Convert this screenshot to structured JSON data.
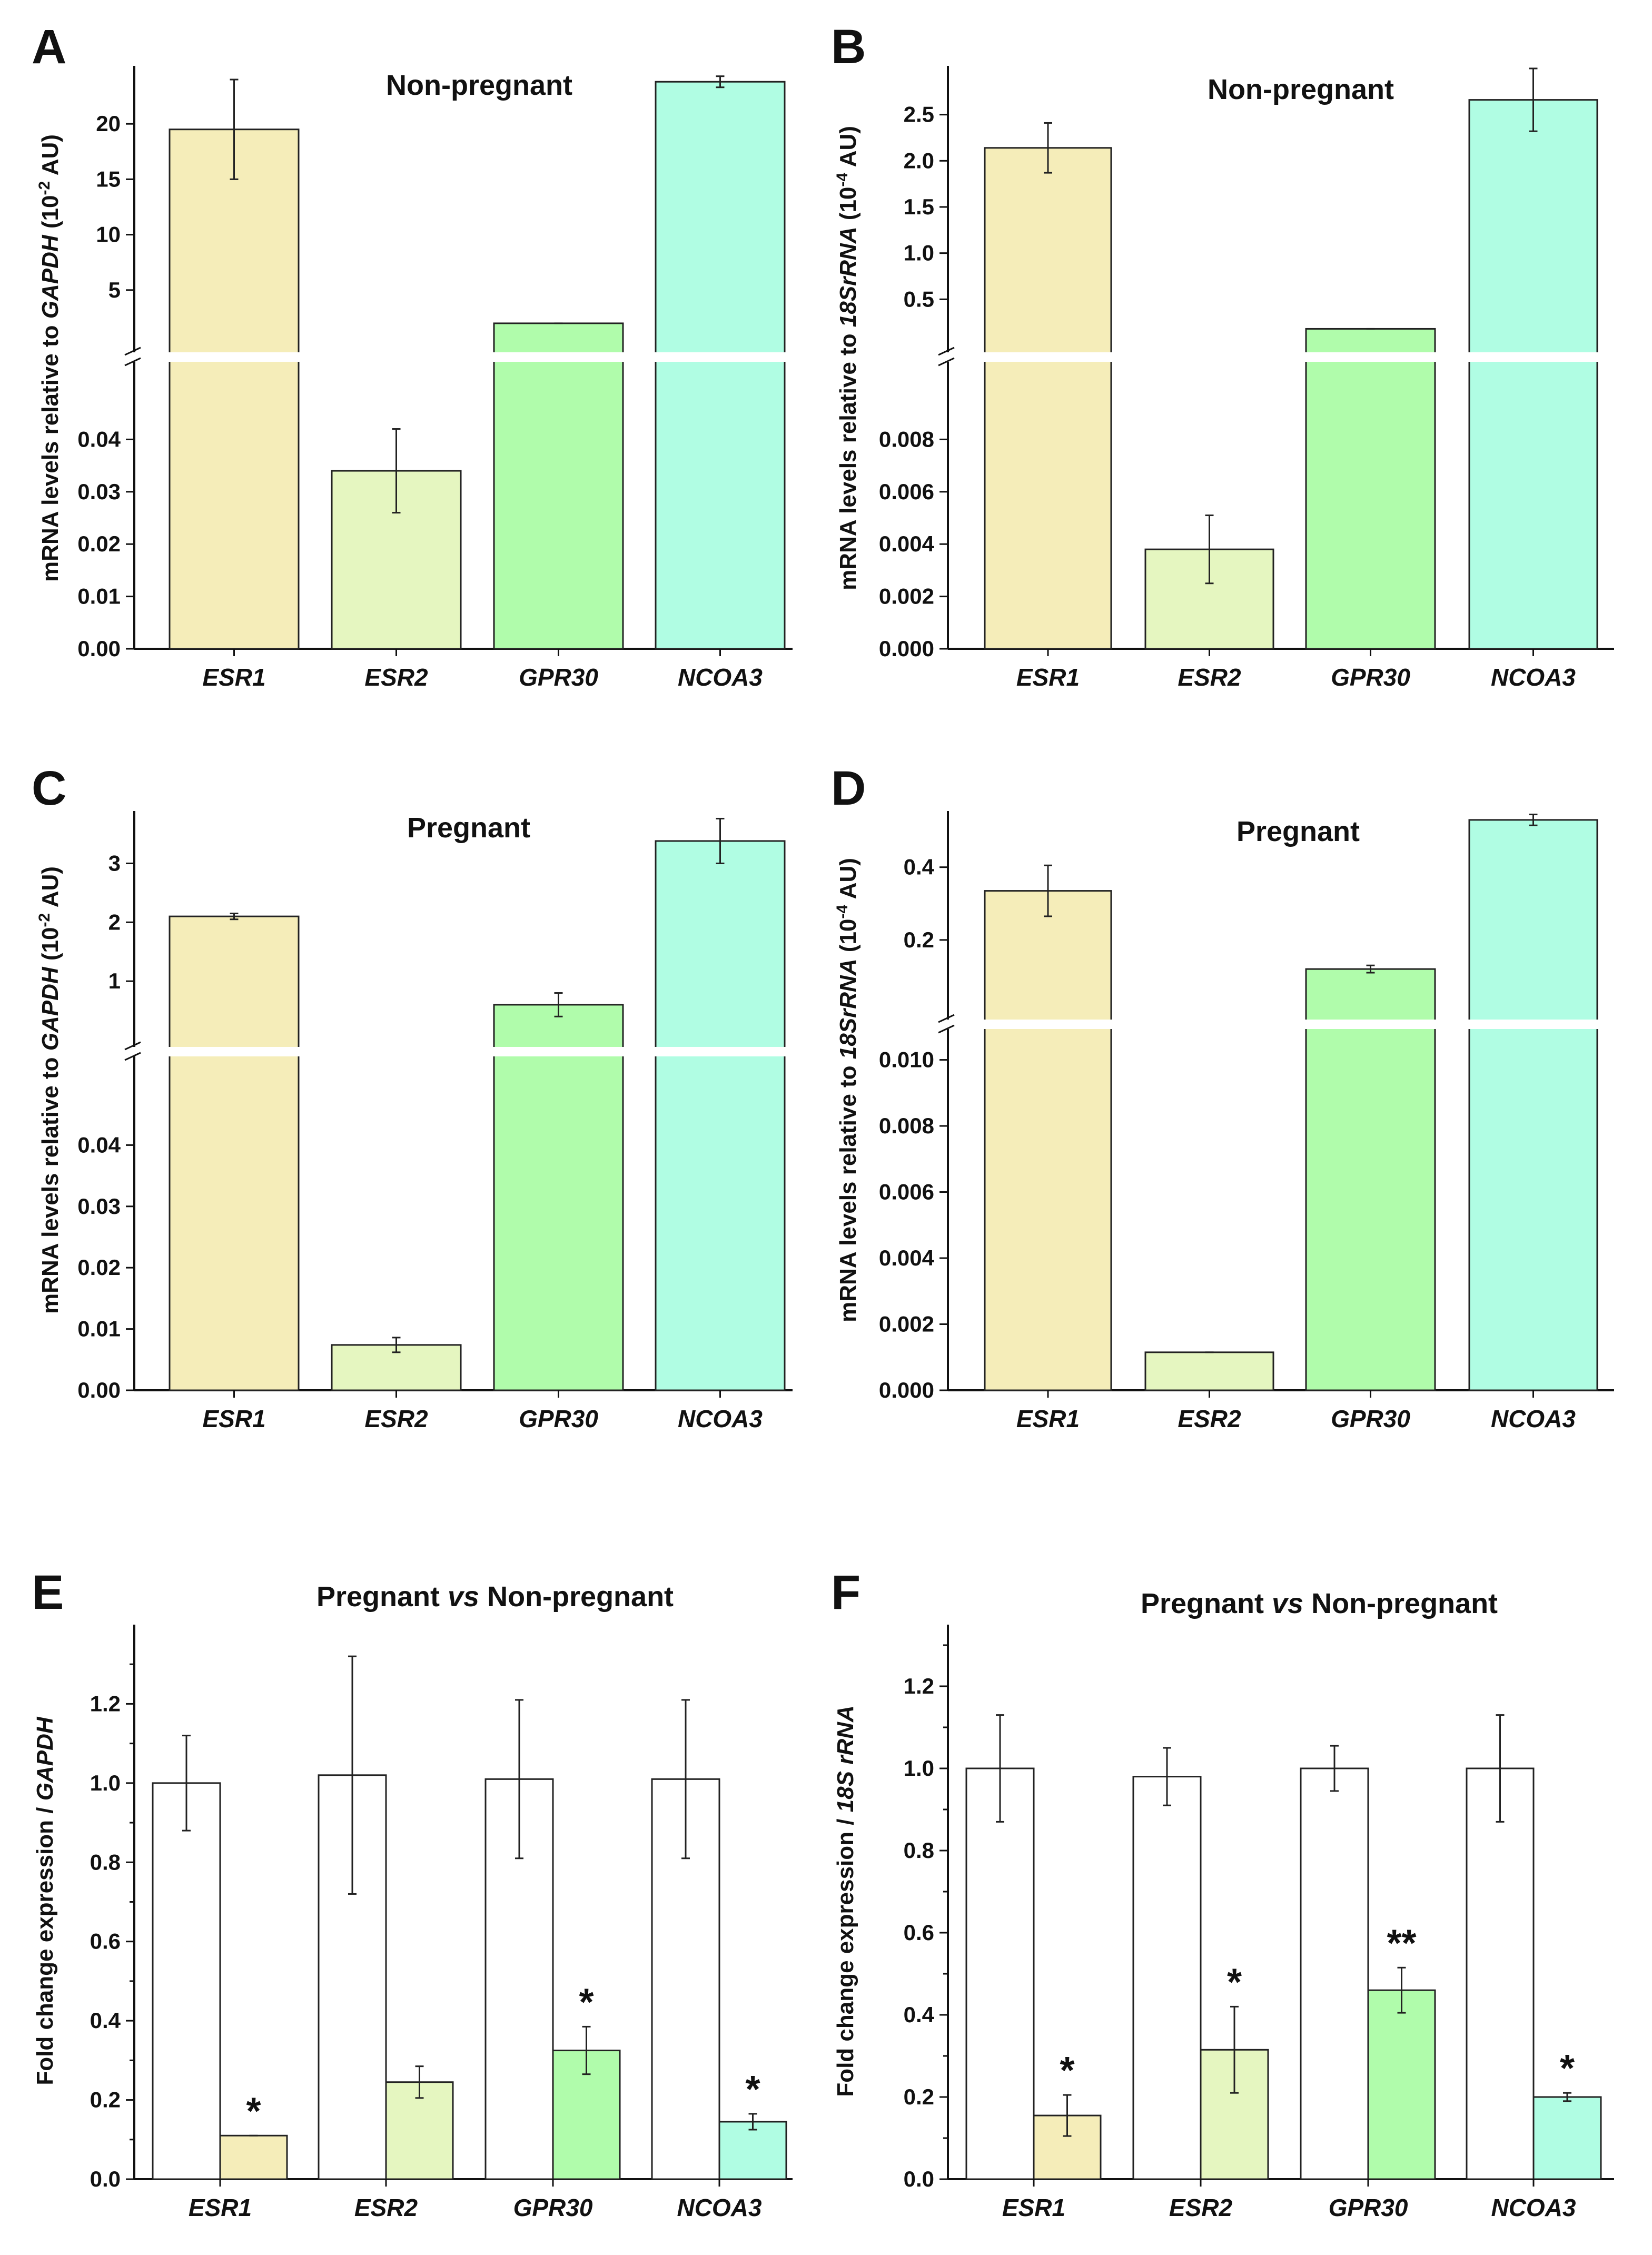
{
  "colors": {
    "ESR1": "#f5edb9",
    "ESR2": "#e5f6c0",
    "GPR30": "#b0fcab",
    "NCOA3": "#b0fde3",
    "control": "#ffffff"
  },
  "categories": [
    "ESR1",
    "ESR2",
    "GPR30",
    "NCOA3"
  ],
  "chart_data": [
    {
      "panel": "A",
      "type": "bar",
      "title": "Non-pregnant",
      "ylabel": "mRNA levels relative to GAPDH (10⁻² AU)",
      "ylabel_parts": [
        "mRNA levels relative to ",
        "GAPDH",
        " (10",
        "-2",
        " AU)"
      ],
      "categories": [
        "ESR1",
        "ESR2",
        "GPR30",
        "NCOA3"
      ],
      "axis_break": true,
      "lower_ylim": [
        0,
        0.05
      ],
      "lower_ticks": [
        "0.00",
        "0.01",
        "0.02",
        "0.03",
        "0.04"
      ],
      "upper_ylim": [
        0,
        25
      ],
      "upper_ticks": [
        "5",
        "10",
        "15",
        "20"
      ],
      "values": [
        19.5,
        0.034,
        2.0,
        23.8
      ],
      "errors": [
        4.5,
        0.008,
        0.0,
        0.5
      ]
    },
    {
      "panel": "B",
      "type": "bar",
      "title": "Non-pregnant",
      "ylabel": "mRNA levels relative to 18SrRNA (10⁻⁴ AU)",
      "ylabel_parts": [
        "mRNA levels relative to ",
        "18SrRNA",
        " (10",
        "-4",
        " AU)"
      ],
      "categories": [
        "ESR1",
        "ESR2",
        "GPR30",
        "NCOA3"
      ],
      "axis_break": true,
      "lower_ylim": [
        0,
        0.01
      ],
      "lower_ticks": [
        "0.000",
        "0.002",
        "0.004",
        "0.006",
        "0.008"
      ],
      "upper_ylim": [
        0,
        3.0
      ],
      "upper_ticks": [
        "0.5",
        "1.0",
        "1.5",
        "2.0",
        "2.5"
      ],
      "values": [
        2.14,
        0.0038,
        0.18,
        2.66
      ],
      "errors": [
        0.27,
        0.0013,
        0.0,
        0.34
      ]
    },
    {
      "panel": "C",
      "type": "bar",
      "title": "Pregnant",
      "ylabel": "mRNA levels relative to GAPDH (10⁻² AU)",
      "ylabel_parts": [
        "mRNA levels relative to ",
        "GAPDH",
        " (10",
        "-2",
        " AU)"
      ],
      "categories": [
        "ESR1",
        "ESR2",
        "GPR30",
        "NCOA3"
      ],
      "axis_break": true,
      "lower_ylim": [
        0,
        0.05
      ],
      "lower_ticks": [
        "0.00",
        "0.01",
        "0.02",
        "0.03",
        "0.04"
      ],
      "upper_ylim": [
        0,
        3.8
      ],
      "upper_ticks": [
        "1",
        "2",
        "3"
      ],
      "values": [
        2.1,
        0.0074,
        0.6,
        3.38
      ],
      "errors": [
        0.05,
        0.0012,
        0.2,
        0.38
      ]
    },
    {
      "panel": "D",
      "type": "bar",
      "title": "Pregnant",
      "ylabel": "mRNA levels relative to 18SrRNA (10⁻⁴ AU)",
      "ylabel_parts": [
        "mRNA levels relative to ",
        "18SrRNA",
        " (10",
        "-4",
        " AU)"
      ],
      "categories": [
        "ESR1",
        "ESR2",
        "GPR30",
        "NCOA3"
      ],
      "axis_break": true,
      "lower_ylim": [
        0,
        0.0102
      ],
      "lower_ticks": [
        "0.000",
        "0.002",
        "0.004",
        "0.006",
        "0.008",
        "0.010"
      ],
      "upper_ylim": [
        0,
        0.54
      ],
      "upper_ticks": [
        "0.2",
        "0.4"
      ],
      "values": [
        0.335,
        0.00115,
        0.12,
        0.53
      ],
      "errors": [
        0.07,
        0.0,
        0.01,
        0.015
      ]
    },
    {
      "panel": "E",
      "type": "bar",
      "title_parts": [
        "Pregnant ",
        "vs",
        " Non-pregnant"
      ],
      "ylabel": "Fold change expression / GAPDH",
      "ylabel_parts": [
        "Fold change expression / ",
        "GAPDH"
      ],
      "categories": [
        "ESR1",
        "ESR2",
        "GPR30",
        "NCOA3"
      ],
      "axis_break": false,
      "ylim": [
        0,
        1.4
      ],
      "ticks": [
        "0.0",
        "0.2",
        "0.4",
        "0.6",
        "0.8",
        "1.0",
        "1.2"
      ],
      "series": [
        {
          "name": "Non-pregnant",
          "values": [
            1.0,
            1.02,
            1.01,
            1.01
          ],
          "errors": [
            0.12,
            0.3,
            0.2,
            0.2
          ]
        },
        {
          "name": "Pregnant",
          "values": [
            0.11,
            0.245,
            0.325,
            0.145
          ],
          "errors": [
            0.0,
            0.04,
            0.06,
            0.02
          ]
        }
      ],
      "significance": [
        "*",
        "",
        "*",
        "*"
      ]
    },
    {
      "panel": "F",
      "type": "bar",
      "title_parts": [
        "Pregnant ",
        "vs",
        " Non-pregnant"
      ],
      "ylabel": "Fold change expression / 18S rRNA",
      "ylabel_parts": [
        "Fold change expression / ",
        "18S rRNA"
      ],
      "categories": [
        "ESR1",
        "ESR2",
        "GPR30",
        "NCOA3"
      ],
      "axis_break": false,
      "ylim": [
        0,
        1.35
      ],
      "ticks": [
        "0.0",
        "0.2",
        "0.4",
        "0.6",
        "0.8",
        "1.0",
        "1.2"
      ],
      "series": [
        {
          "name": "Non-pregnant",
          "values": [
            1.0,
            0.98,
            1.0,
            1.0
          ],
          "errors": [
            0.13,
            0.07,
            0.055,
            0.13
          ]
        },
        {
          "name": "Pregnant",
          "values": [
            0.155,
            0.315,
            0.46,
            0.2
          ],
          "errors": [
            0.05,
            0.105,
            0.055,
            0.01
          ]
        }
      ],
      "significance": [
        "*",
        "*",
        "**",
        "*"
      ]
    }
  ]
}
